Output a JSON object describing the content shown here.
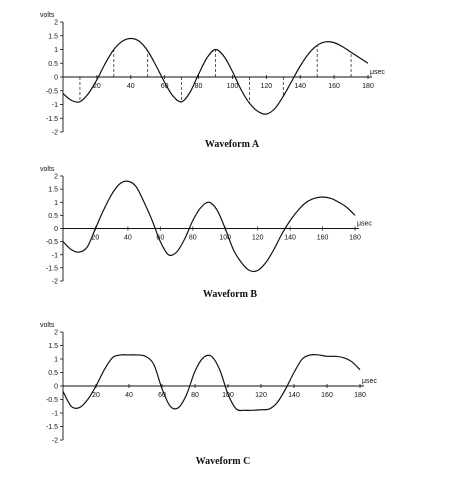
{
  "chart_data": [
    {
      "type": "line",
      "title": "Waveform A",
      "ylabel": "volts",
      "xunit": "μsec",
      "xlim": [
        0,
        180
      ],
      "ylim": [
        -2,
        2
      ],
      "xticks": [
        "20",
        "40",
        "60",
        "80",
        "100",
        "120",
        "140",
        "160",
        "180"
      ],
      "yticks": [
        "2",
        "1.5",
        "1",
        "0.5",
        "0",
        "-0.5",
        "-1",
        "-1.5",
        "-2"
      ],
      "series": [
        {
          "x": [
            0,
            5,
            10,
            15,
            20,
            25,
            30,
            35,
            40,
            45,
            50,
            55,
            60,
            65,
            70,
            75,
            80,
            85,
            90,
            95,
            100,
            105,
            110,
            115,
            120,
            125,
            130,
            135,
            140,
            145,
            150,
            155,
            160,
            165,
            170,
            175,
            180
          ],
          "values": [
            -0.6,
            -0.85,
            -0.9,
            -0.6,
            -0.1,
            0.5,
            1.0,
            1.3,
            1.4,
            1.3,
            0.95,
            0.4,
            -0.2,
            -0.7,
            -0.9,
            -0.55,
            0.1,
            0.7,
            1.0,
            0.75,
            0.2,
            -0.45,
            -0.95,
            -1.25,
            -1.35,
            -1.15,
            -0.7,
            -0.15,
            0.4,
            0.85,
            1.15,
            1.28,
            1.25,
            1.1,
            0.9,
            0.7,
            0.5
          ]
        }
      ],
      "dashed_guides_x": [
        10,
        30,
        50,
        70,
        90,
        110,
        130,
        150,
        170
      ]
    },
    {
      "type": "line",
      "title": "Waveform B",
      "ylabel": "volts",
      "xunit": "μsec",
      "xlim": [
        0,
        180
      ],
      "ylim": [
        -2,
        2
      ],
      "xticks": [
        "20",
        "40",
        "60",
        "80",
        "100",
        "120",
        "140",
        "160",
        "180"
      ],
      "yticks": [
        "2",
        "1.5",
        "1",
        "0.5",
        "0",
        "-0.5",
        "-1",
        "-1.5",
        "-2"
      ],
      "series": [
        {
          "x": [
            0,
            5,
            10,
            15,
            20,
            25,
            30,
            35,
            40,
            45,
            50,
            55,
            60,
            65,
            70,
            75,
            80,
            85,
            90,
            95,
            100,
            105,
            110,
            115,
            120,
            125,
            130,
            135,
            140,
            145,
            150,
            155,
            160,
            165,
            170,
            175,
            180
          ],
          "values": [
            -0.5,
            -0.8,
            -0.9,
            -0.7,
            0.0,
            0.7,
            1.3,
            1.7,
            1.8,
            1.6,
            1.0,
            0.3,
            -0.5,
            -1.0,
            -0.9,
            -0.4,
            0.3,
            0.8,
            1.0,
            0.7,
            0.0,
            -0.8,
            -1.3,
            -1.6,
            -1.6,
            -1.3,
            -0.8,
            -0.2,
            0.3,
            0.7,
            1.0,
            1.15,
            1.2,
            1.15,
            1.0,
            0.8,
            0.5
          ]
        }
      ]
    },
    {
      "type": "line",
      "title": "Waveform C",
      "ylabel": "volts",
      "xunit": "μsec",
      "xlim": [
        0,
        180
      ],
      "ylim": [
        -2,
        2
      ],
      "xticks": [
        "20",
        "40",
        "60",
        "80",
        "100",
        "120",
        "140",
        "160",
        "180"
      ],
      "yticks": [
        "2",
        "1.5",
        "1",
        "0.5",
        "0",
        "-0.5",
        "-1",
        "-1.5",
        "-2"
      ],
      "series": [
        {
          "x": [
            0,
            5,
            10,
            15,
            20,
            25,
            30,
            35,
            40,
            45,
            50,
            55,
            60,
            65,
            70,
            75,
            80,
            85,
            90,
            95,
            100,
            105,
            110,
            115,
            120,
            125,
            130,
            135,
            140,
            145,
            150,
            155,
            160,
            165,
            170,
            175,
            180
          ],
          "values": [
            -0.2,
            -0.75,
            -0.8,
            -0.5,
            0.0,
            0.6,
            1.05,
            1.15,
            1.15,
            1.15,
            1.1,
            0.8,
            -0.1,
            -0.75,
            -0.8,
            -0.3,
            0.55,
            1.05,
            1.1,
            0.6,
            -0.3,
            -0.85,
            -0.9,
            -0.9,
            -0.88,
            -0.85,
            -0.6,
            -0.1,
            0.5,
            1.0,
            1.15,
            1.15,
            1.1,
            1.1,
            1.05,
            0.9,
            0.6
          ]
        }
      ]
    }
  ]
}
